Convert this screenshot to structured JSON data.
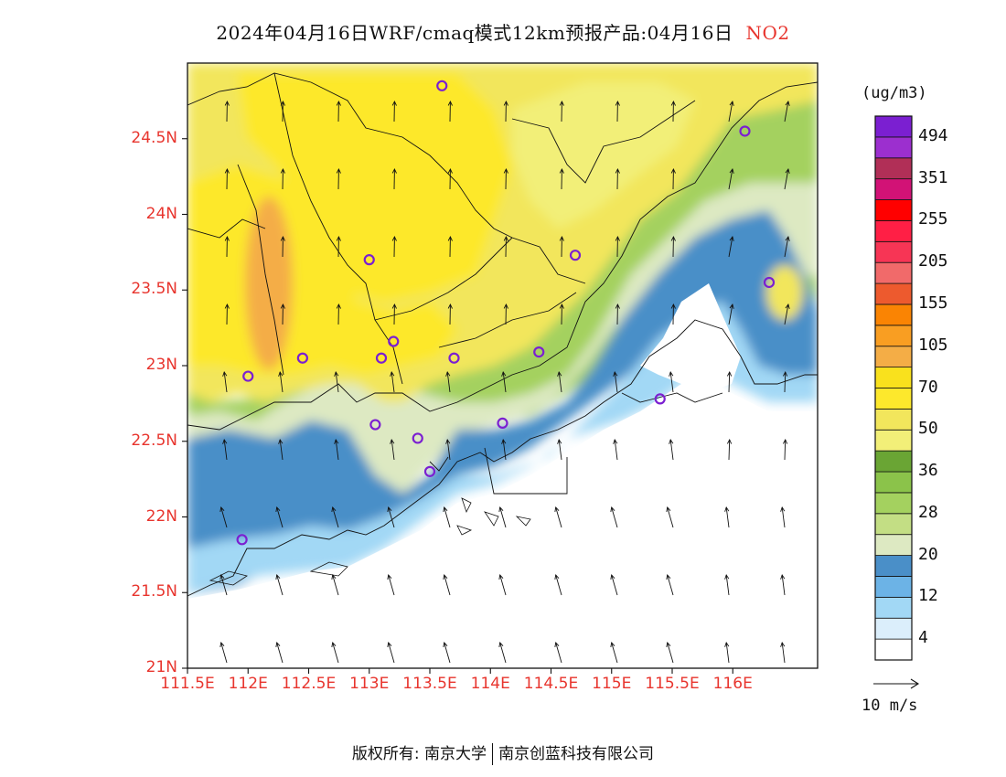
{
  "title": {
    "text": "2024年04月16日WRF/cmaq模式12km预报产品:04月16日",
    "species": "NO2"
  },
  "map": {
    "latitude_labels": [
      "24.5N",
      "24N",
      "23.5N",
      "23N",
      "22.5N",
      "22N",
      "21.5N",
      "21N"
    ],
    "longitude_labels": [
      "111.5E",
      "112E",
      "112.5E",
      "113E",
      "113.5E",
      "114E",
      "114.5E",
      "115E",
      "115.5E",
      "116E"
    ],
    "lat_range": [
      21.0,
      25.0
    ],
    "lon_range": [
      111.5,
      116.7
    ],
    "field": "NO2 concentration",
    "highlight_color": "#7b1fd1"
  },
  "colorbar": {
    "unit": "(ug/m3)",
    "colors": [
      "#ffffff",
      "#dbeefb",
      "#a2d8f5",
      "#6cb3e6",
      "#4a8fc8",
      "#dde9c2",
      "#c3de84",
      "#a4d15f",
      "#8bc34a",
      "#6aa534",
      "#f2ef78",
      "#f2e65c",
      "#fde82c",
      "#f9e11d",
      "#f4ad46",
      "#f99e22",
      "#fa8403",
      "#ed5a2e",
      "#f16a6a",
      "#f73555",
      "#ff1f45",
      "#ff0000",
      "#d21276",
      "#b12f57",
      "#9c2fcf",
      "#7b1fd1"
    ],
    "labels": [
      "4",
      "12",
      "20",
      "28",
      "36",
      "50",
      "70",
      "105",
      "155",
      "205",
      "255",
      "351",
      "494"
    ]
  },
  "wind_reference": {
    "label": "10 m/s"
  },
  "footer": {
    "left": "版权所有: 南京大学",
    "right": "南京创蓝科技有限公司"
  }
}
